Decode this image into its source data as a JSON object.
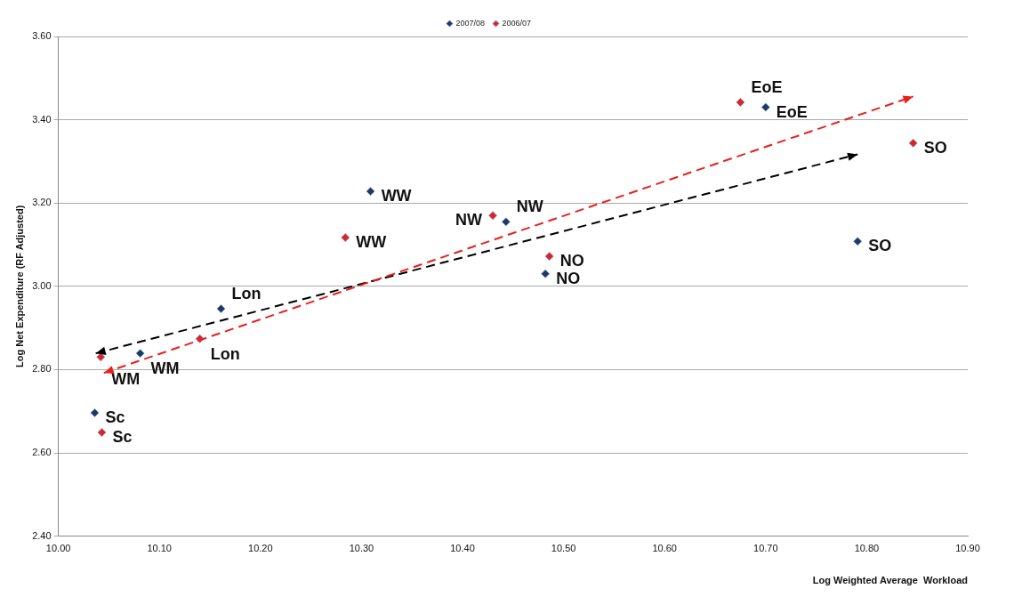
{
  "chart_data": {
    "type": "scatter",
    "xlabel": "Log Weighted Average  Workload",
    "ylabel": "Log Net Expenditure (RF Adjusted)",
    "xlim": [
      10.0,
      10.9
    ],
    "xticks": [
      {
        "value": 10.0,
        "label": "10.00"
      },
      {
        "value": 10.1,
        "label": "10.10"
      },
      {
        "value": 10.2,
        "label": "10.20"
      },
      {
        "value": 10.3,
        "label": "10.30"
      },
      {
        "value": 10.4,
        "label": "10.40"
      },
      {
        "value": 10.5,
        "label": "10.50"
      },
      {
        "value": 10.6,
        "label": "10.60"
      },
      {
        "value": 10.7,
        "label": "10.70"
      },
      {
        "value": 10.8,
        "label": "10.80"
      },
      {
        "value": 10.9,
        "label": "10.90"
      }
    ],
    "ylim": [
      2.4,
      3.6
    ],
    "yticks": [
      {
        "value": 2.4,
        "label": "2.40"
      },
      {
        "value": 2.6,
        "label": "2.60"
      },
      {
        "value": 2.8,
        "label": "2.80"
      },
      {
        "value": 3.0,
        "label": "3.00"
      },
      {
        "value": 3.2,
        "label": "3.20"
      },
      {
        "value": 3.4,
        "label": "3.40"
      },
      {
        "value": 3.6,
        "label": "3.60"
      }
    ],
    "grid": "y",
    "legend": "top",
    "marker": "diamond",
    "series": [
      {
        "name": "2007/08",
        "color": "#1f3864",
        "x": [
          10.309,
          10.443,
          10.482,
          10.791,
          10.7,
          10.161,
          10.081,
          10.036
        ],
        "values": [
          3.228,
          3.155,
          3.03,
          3.108,
          3.43,
          2.946,
          2.839,
          2.696
        ],
        "value_labels": [
          "WW",
          "NW",
          "NO",
          "SO",
          "EoE",
          "Lon",
          "WM",
          "Sc"
        ]
      },
      {
        "name": "2006/07",
        "color": "#e8201c",
        "x": [
          10.675,
          10.846,
          10.43,
          10.284,
          10.486,
          10.14,
          10.042,
          10.043
        ],
        "values": [
          3.442,
          3.344,
          3.17,
          3.117,
          3.072,
          2.874,
          2.83,
          2.649
        ],
        "value_labels": [
          "EoE",
          "SO",
          "NW",
          "WW",
          "NO",
          "Lon",
          "WM",
          "Sc"
        ]
      }
    ]
  }
}
